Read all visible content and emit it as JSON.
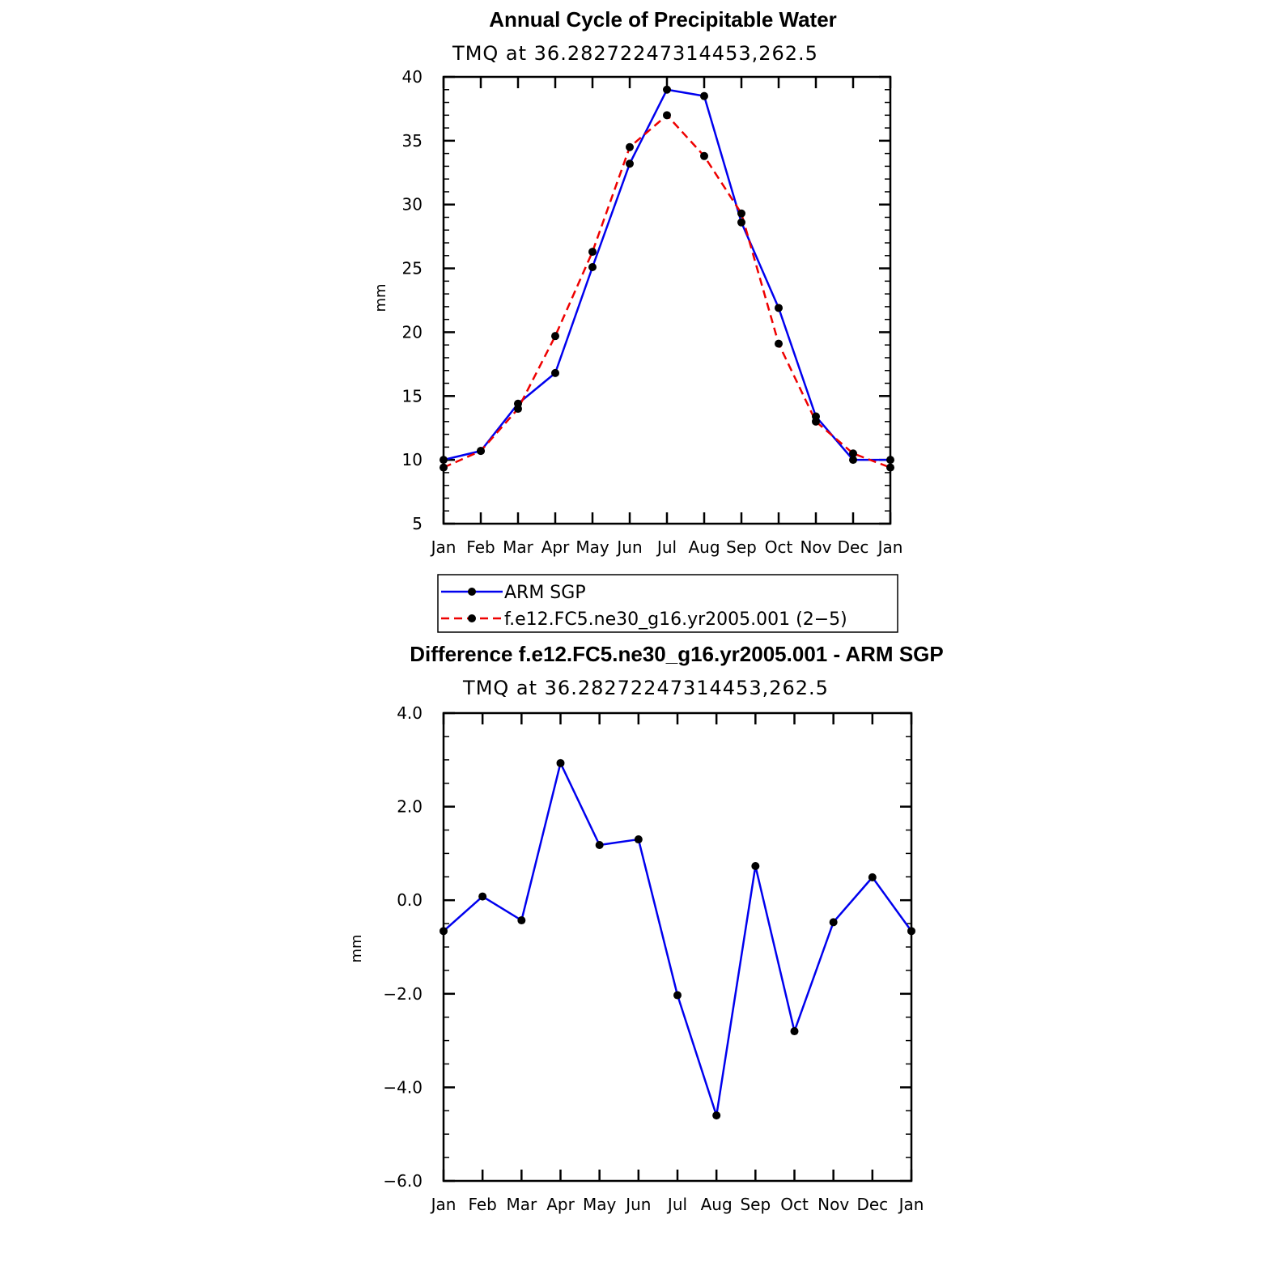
{
  "colors": {
    "arm": "#0000ee",
    "model": "#ee0000",
    "marker": "#000000"
  },
  "chart_data": [
    {
      "type": "line",
      "title": "Annual Cycle of Precipitable Water",
      "subtitle": "TMQ at 36.28272247314453,262.5",
      "ylabel": "mm",
      "xlabel": "",
      "categories": [
        "Jan",
        "Feb",
        "Mar",
        "Apr",
        "May",
        "Jun",
        "Jul",
        "Aug",
        "Sep",
        "Oct",
        "Nov",
        "Dec",
        "Jan"
      ],
      "ylim": [
        5,
        40
      ],
      "yticks": [
        "5",
        "10",
        "15",
        "20",
        "25",
        "30",
        "35",
        "40"
      ],
      "ytick_values": [
        5,
        10,
        15,
        20,
        25,
        30,
        35,
        40
      ],
      "grid": false,
      "legend": "below",
      "series": [
        {
          "name": "ARM SGP",
          "style": "solid",
          "color": "#0000ee",
          "values": [
            10.0,
            10.7,
            14.4,
            16.8,
            25.1,
            33.2,
            39.0,
            38.5,
            28.6,
            21.9,
            13.4,
            10.0,
            10.0
          ]
        },
        {
          "name": "f.e12.FC5.ne30_g16.yr2005.001 (2−5)",
          "style": "dashed",
          "color": "#ee0000",
          "values": [
            9.4,
            10.7,
            14.0,
            19.7,
            26.3,
            34.5,
            37.0,
            33.8,
            29.3,
            19.1,
            13.0,
            10.5,
            9.4
          ]
        }
      ]
    },
    {
      "type": "line",
      "title": "Difference f.e12.FC5.ne30_g16.yr2005.001 - ARM SGP",
      "subtitle": "TMQ at 36.28272247314453,262.5",
      "ylabel": "mm",
      "xlabel": "",
      "categories": [
        "Jan",
        "Feb",
        "Mar",
        "Apr",
        "May",
        "Jun",
        "Jul",
        "Aug",
        "Sep",
        "Oct",
        "Nov",
        "Dec",
        "Jan"
      ],
      "ylim": [
        -6.0,
        4.0
      ],
      "yticks": [
        "−6.0",
        "−4.0",
        "−2.0",
        "0.0",
        "2.0",
        "4.0"
      ],
      "ytick_values": [
        -6.0,
        -4.0,
        -2.0,
        0.0,
        2.0,
        4.0
      ],
      "grid": false,
      "series": [
        {
          "name": "",
          "style": "solid",
          "color": "#0000ee",
          "values": [
            -0.66,
            0.08,
            -0.43,
            2.93,
            1.18,
            1.3,
            -2.03,
            -4.6,
            0.73,
            -2.8,
            -0.47,
            0.49,
            -0.66
          ]
        }
      ]
    }
  ]
}
